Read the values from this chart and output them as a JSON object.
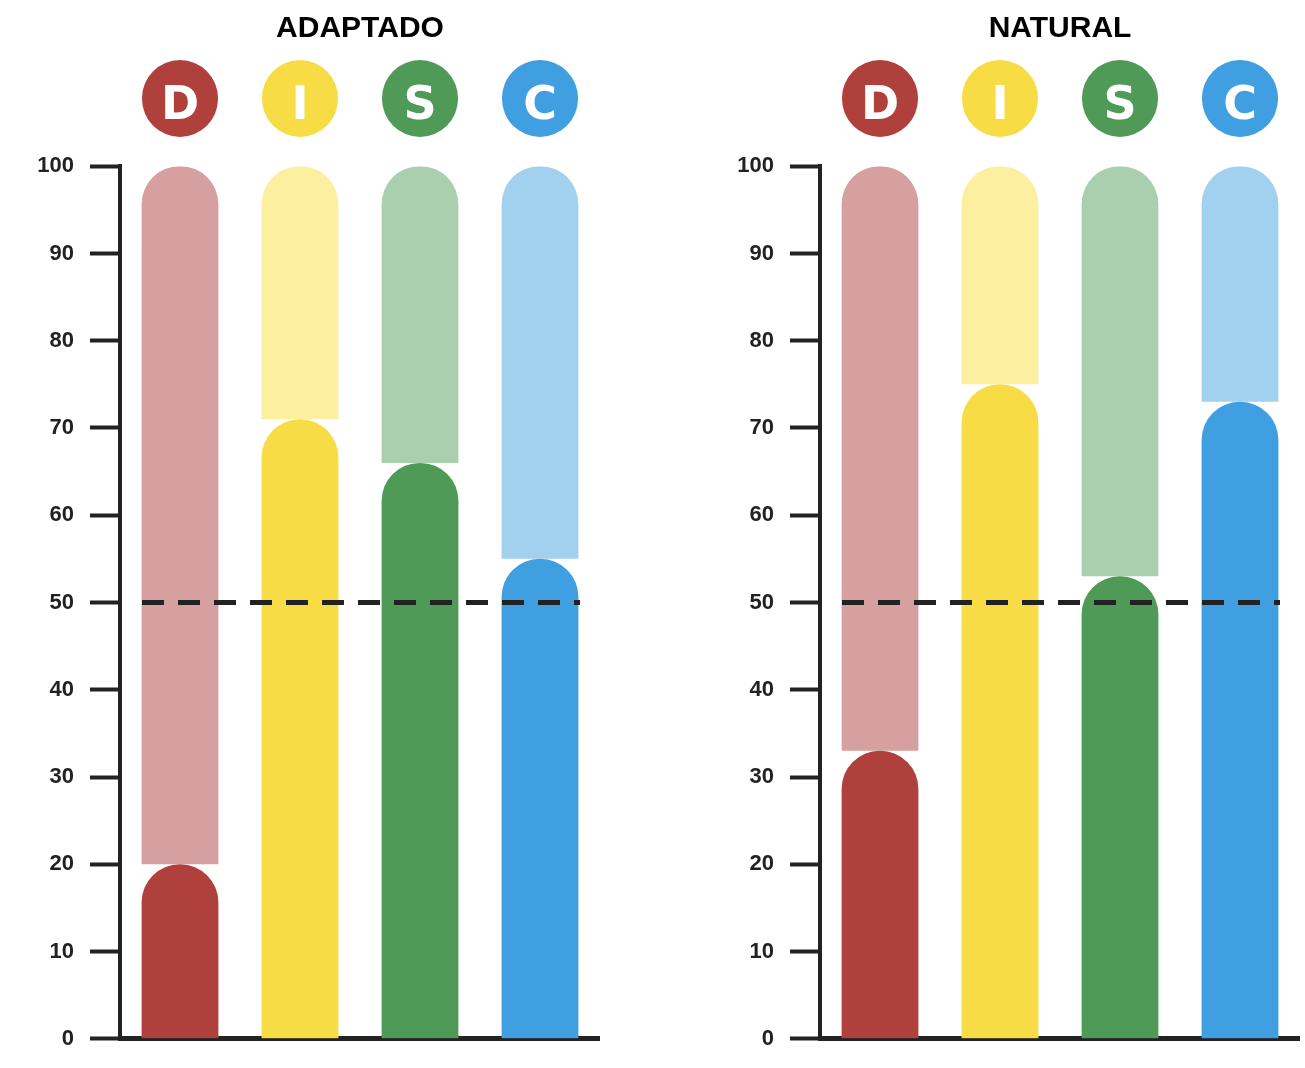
{
  "chart_data": [
    {
      "type": "bar",
      "title": "ADAPTADO",
      "categories": [
        "D",
        "I",
        "S",
        "C"
      ],
      "stacked": true,
      "series": [
        {
          "colors": [
            "#b0403c",
            "#f8dc45",
            "#4f9a57",
            "#3f9fe0"
          ],
          "values": [
            20,
            71,
            66,
            55
          ]
        },
        {
          "colors": [
            "#d6a0a0",
            "#fcef9f",
            "#a9cfae",
            "#a2d0ef"
          ],
          "values": [
            80,
            29,
            34,
            45
          ]
        }
      ],
      "ylim": [
        0,
        100
      ],
      "yticks": [
        0,
        10,
        20,
        30,
        40,
        50,
        60,
        70,
        80,
        90,
        100
      ],
      "ref_lines": [
        {
          "axis": "y",
          "value": 50,
          "line_style": "dashed",
          "color": "#222222"
        }
      ]
    },
    {
      "type": "bar",
      "title": "NATURAL",
      "categories": [
        "D",
        "I",
        "S",
        "C"
      ],
      "stacked": true,
      "series": [
        {
          "colors": [
            "#b0403c",
            "#f8dc45",
            "#4f9a57",
            "#3f9fe0"
          ],
          "values": [
            33,
            75,
            53,
            73
          ]
        },
        {
          "colors": [
            "#d6a0a0",
            "#fcef9f",
            "#a9cfae",
            "#a2d0ef"
          ],
          "values": [
            67,
            25,
            47,
            27
          ]
        }
      ],
      "ylim": [
        0,
        100
      ],
      "yticks": [
        0,
        10,
        20,
        30,
        40,
        50,
        60,
        70,
        80,
        90,
        100
      ],
      "ref_lines": [
        {
          "axis": "y",
          "value": 50,
          "line_style": "dashed",
          "color": "#222222"
        }
      ]
    }
  ]
}
